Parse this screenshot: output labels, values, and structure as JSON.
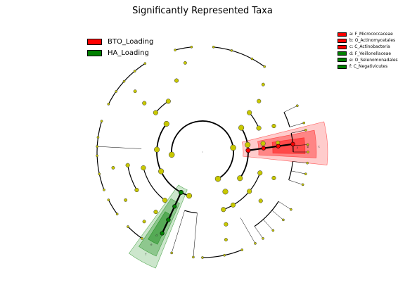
{
  "title": "Significantly Represented Taxa",
  "colors": {
    "BTO_Loading": "#ff0000",
    "HA_Loading": "#008000",
    "node": "#c8c800",
    "branch": "#000000"
  },
  "chart_data": {
    "type": "cladogram",
    "classes": [
      {
        "name": "BTO_Loading",
        "color": "#ff0000"
      },
      {
        "name": "HA_Loading",
        "color": "#008000"
      }
    ],
    "clade_legend": [
      {
        "text": "a: F_Micrococcaceae",
        "class": "BTO_Loading"
      },
      {
        "text": "b: O_Actinomycetales",
        "class": "BTO_Loading"
      },
      {
        "text": "c: C_Actinobacteria",
        "class": "BTO_Loading"
      },
      {
        "text": "d: F_Veillonellaceae",
        "class": "HA_Loading"
      },
      {
        "text": "e: O_Selenomonadales",
        "class": "HA_Loading"
      },
      {
        "text": "f: C_Negativicutes",
        "class": "HA_Loading"
      }
    ],
    "highlighted_clades": [
      {
        "letter": "a",
        "class": "BTO_Loading",
        "level": "family"
      },
      {
        "letter": "b",
        "class": "BTO_Loading",
        "level": "order"
      },
      {
        "letter": "c",
        "class": "BTO_Loading",
        "level": "class"
      },
      {
        "letter": "d",
        "class": "HA_Loading",
        "level": "family"
      },
      {
        "letter": "e",
        "class": "HA_Loading",
        "level": "order"
      },
      {
        "letter": "f",
        "class": "HA_Loading",
        "level": "class"
      }
    ]
  }
}
